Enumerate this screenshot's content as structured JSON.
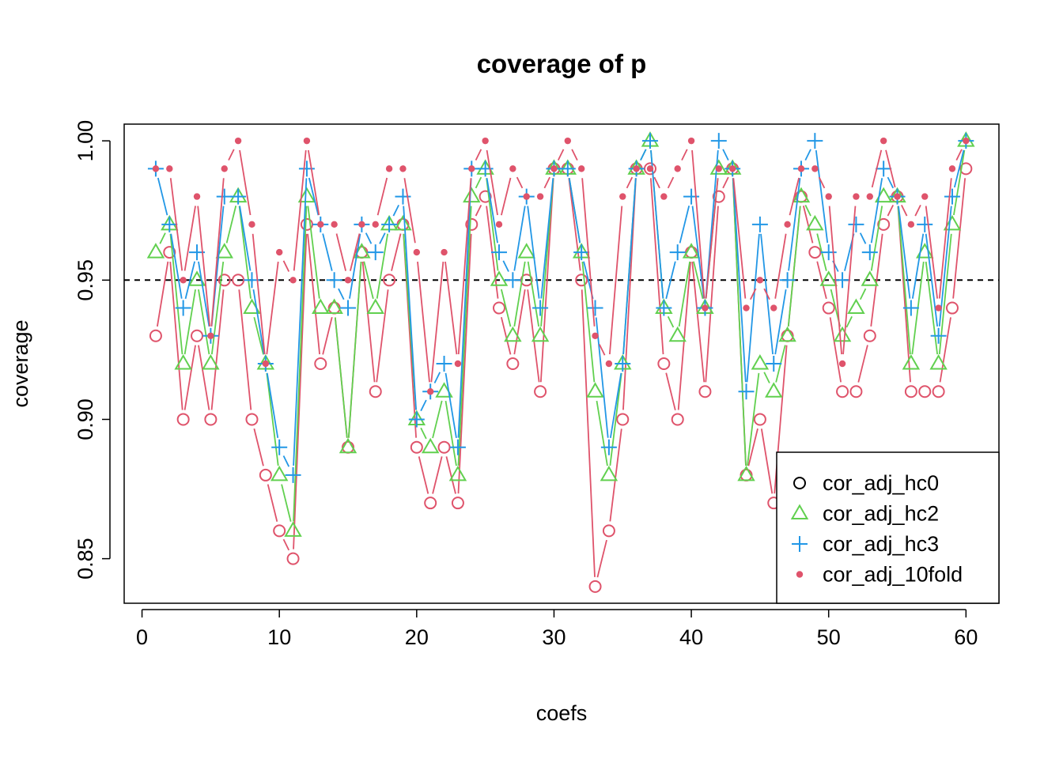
{
  "chart_data": {
    "type": "line",
    "title": "coverage of p",
    "xlabel": "coefs",
    "ylabel": "coverage",
    "xlim": [
      -1.3,
      62.4
    ],
    "ylim": [
      0.834,
      1.006
    ],
    "xticks": [
      0,
      10,
      20,
      30,
      40,
      50,
      60
    ],
    "yticks": [
      0.85,
      0.9,
      0.95,
      1.0
    ],
    "ytick_labels": [
      "0.85",
      "0.90",
      "0.95",
      "1.00"
    ],
    "reference_line": {
      "y": 0.95,
      "style": "dashed",
      "color": "#000000"
    },
    "legend_position": "bottom-right",
    "x": [
      1,
      2,
      3,
      4,
      5,
      6,
      7,
      8,
      9,
      10,
      11,
      12,
      13,
      14,
      15,
      16,
      17,
      18,
      19,
      20,
      21,
      22,
      23,
      24,
      25,
      26,
      27,
      28,
      29,
      30,
      31,
      32,
      33,
      34,
      35,
      36,
      37,
      38,
      39,
      40,
      41,
      42,
      43,
      44,
      45,
      46,
      47,
      48,
      49,
      50,
      51,
      52,
      53,
      54,
      55,
      56,
      57,
      58,
      59,
      60
    ],
    "series": [
      {
        "name": "cor_adj_hc0",
        "marker": "circle-open",
        "color": "#DF536B",
        "values": [
          0.93,
          0.96,
          0.9,
          0.93,
          0.9,
          0.95,
          0.95,
          0.9,
          0.88,
          0.86,
          0.85,
          0.97,
          0.92,
          0.94,
          0.89,
          0.96,
          0.91,
          0.95,
          0.97,
          0.89,
          0.87,
          0.89,
          0.87,
          0.97,
          0.98,
          0.94,
          0.92,
          0.95,
          0.91,
          0.99,
          0.99,
          0.95,
          0.84,
          0.86,
          0.9,
          0.99,
          0.99,
          0.92,
          0.9,
          0.96,
          0.91,
          0.98,
          0.99,
          0.88,
          0.9,
          0.87,
          0.93,
          0.98,
          0.96,
          0.94,
          0.91,
          0.91,
          0.93,
          0.97,
          0.98,
          0.91,
          0.91,
          0.91,
          0.94,
          0.99
        ]
      },
      {
        "name": "cor_adj_hc2",
        "marker": "triangle-open",
        "color": "#61D04F",
        "values": [
          0.96,
          0.97,
          0.92,
          0.95,
          0.92,
          0.96,
          0.98,
          0.94,
          0.92,
          0.88,
          0.86,
          0.98,
          0.94,
          0.94,
          0.89,
          0.96,
          0.94,
          0.97,
          0.97,
          0.9,
          0.89,
          0.91,
          0.88,
          0.98,
          0.99,
          0.95,
          0.93,
          0.96,
          0.93,
          0.99,
          0.99,
          0.96,
          0.91,
          0.88,
          0.92,
          0.99,
          1.0,
          0.94,
          0.93,
          0.96,
          0.94,
          0.99,
          0.99,
          0.88,
          0.92,
          0.91,
          0.93,
          0.98,
          0.97,
          0.95,
          0.93,
          0.94,
          0.95,
          0.98,
          0.98,
          0.92,
          0.96,
          0.92,
          0.97,
          1.0
        ]
      },
      {
        "name": "cor_adj_hc3",
        "marker": "plus",
        "color": "#2297E6",
        "values": [
          0.99,
          0.97,
          0.94,
          0.96,
          0.93,
          0.98,
          0.98,
          0.95,
          0.92,
          0.89,
          0.88,
          0.99,
          0.97,
          0.95,
          0.94,
          0.97,
          0.96,
          0.97,
          0.98,
          0.9,
          0.91,
          0.92,
          0.89,
          0.99,
          0.99,
          0.96,
          0.95,
          0.98,
          0.94,
          0.99,
          0.99,
          0.96,
          0.94,
          0.89,
          0.92,
          0.99,
          1.0,
          0.94,
          0.96,
          0.98,
          0.94,
          1.0,
          0.99,
          0.91,
          0.97,
          0.92,
          0.95,
          0.99,
          1.0,
          0.96,
          0.95,
          0.97,
          0.96,
          0.99,
          0.98,
          0.94,
          0.97,
          0.93,
          0.98,
          1.0
        ]
      },
      {
        "name": "cor_adj_10fold",
        "marker": "dot-filled",
        "color": "#DF536B",
        "values": [
          0.99,
          0.99,
          0.95,
          0.98,
          0.93,
          0.99,
          1.0,
          0.97,
          0.92,
          0.96,
          0.95,
          1.0,
          0.97,
          0.97,
          0.95,
          0.97,
          0.97,
          0.99,
          0.99,
          0.96,
          0.91,
          0.96,
          0.92,
          0.99,
          1.0,
          0.97,
          0.99,
          0.98,
          0.98,
          0.99,
          1.0,
          0.99,
          0.93,
          0.92,
          0.98,
          0.99,
          0.99,
          0.98,
          0.99,
          1.0,
          0.94,
          0.99,
          0.99,
          0.94,
          0.95,
          0.94,
          0.97,
          0.99,
          0.99,
          0.98,
          0.92,
          0.98,
          0.98,
          1.0,
          0.98,
          0.97,
          0.98,
          0.94,
          0.99,
          1.0
        ]
      }
    ]
  }
}
